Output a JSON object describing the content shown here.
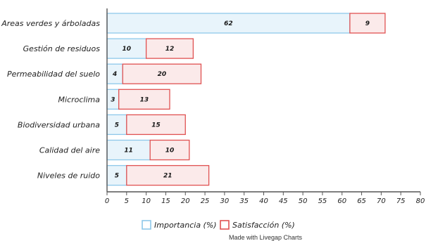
{
  "chart_data": {
    "type": "bar",
    "orientation": "horizontal",
    "stacked": true,
    "categories": [
      "Areas verdes y árboladas",
      "Gestión de residuos",
      "Permeabilidad del suelo",
      "Microclima",
      "Biodiversidad urbana",
      "Calidad del aire",
      "Niveles de ruido"
    ],
    "series": [
      {
        "name": "Importancia (%)",
        "values": [
          62,
          10,
          4,
          3,
          5,
          11,
          5
        ],
        "fill": "#e8f4fb",
        "stroke": "#8ec8ea"
      },
      {
        "name": "Satisfacción (%)",
        "values": [
          9,
          12,
          20,
          13,
          15,
          10,
          21
        ],
        "fill": "#fbeaea",
        "stroke": "#e05252"
      }
    ],
    "xlim": [
      0,
      80
    ],
    "xticks": [
      "0",
      "5",
      "10",
      "15",
      "20",
      "25",
      "30",
      "35",
      "40",
      "45",
      "50",
      "55",
      "60",
      "65",
      "70",
      "75",
      "80"
    ],
    "legend_position": "bottom-center",
    "grid": false
  },
  "credit": "Made with Livegap Charts"
}
